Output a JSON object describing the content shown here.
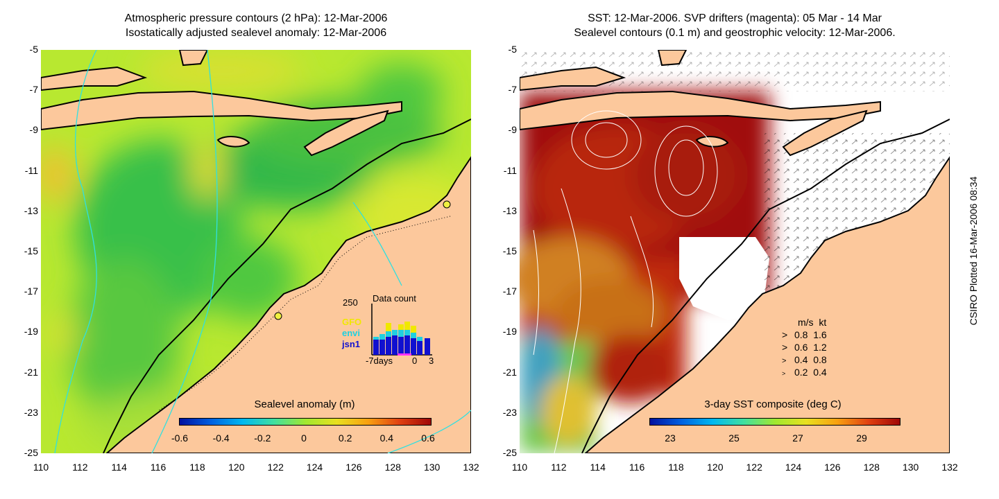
{
  "left": {
    "title_line1": "Atmospheric pressure contours (2 hPa): 12-Mar-2006",
    "title_line2": "Isostatically adjusted sealevel anomaly: 12-Mar-2006",
    "colorbar_label": "Sealevel anomaly (m)",
    "colorbar_ticks": [
      "-0.6",
      "-0.4",
      "-0.2",
      "0",
      "0.2",
      "0.4",
      "0.6"
    ],
    "inset": {
      "title": "Data count",
      "ymax_label": "250",
      "legend": [
        "GFO",
        "envi",
        "jsn1"
      ],
      "legend_colors": [
        "#f0e800",
        "#20d0e0",
        "#1010d0"
      ],
      "x_labels": [
        "-7days",
        "0",
        "3"
      ]
    }
  },
  "right": {
    "title_line1": "SST: 12-Mar-2006. SVP drifters (magenta): 05 Mar - 14 Mar",
    "title_line2": "Sealevel contours (0.1 m) and geostrophic velocity: 12-Mar-2006.",
    "colorbar_label": "3-day SST composite (deg C)",
    "colorbar_ticks": [
      "23",
      "25",
      "27",
      "29"
    ],
    "vector_legend": {
      "header_ms": "m/s",
      "header_kt": "kt",
      "rows": [
        {
          "ms": "0.8",
          "kt": "1.6"
        },
        {
          "ms": "0.6",
          "kt": "1.2"
        },
        {
          "ms": "0.4",
          "kt": "0.8"
        },
        {
          "ms": "0.2",
          "kt": "0.4"
        }
      ]
    }
  },
  "axes": {
    "y_ticks": [
      "-5",
      "-7",
      "-9",
      "-11",
      "-13",
      "-15",
      "-17",
      "-19",
      "-21",
      "-23",
      "-25"
    ],
    "x_ticks": [
      "110",
      "112",
      "114",
      "116",
      "118",
      "120",
      "122",
      "124",
      "126",
      "128",
      "130",
      "132"
    ]
  },
  "side_label": "CSIRO Plotted 16-Mar-2006 08:34",
  "colors": {
    "land": "#fcc89c",
    "coast": "#000000",
    "pressure_contour": "#30e0e0",
    "sst_contour": "#ffffff"
  }
}
